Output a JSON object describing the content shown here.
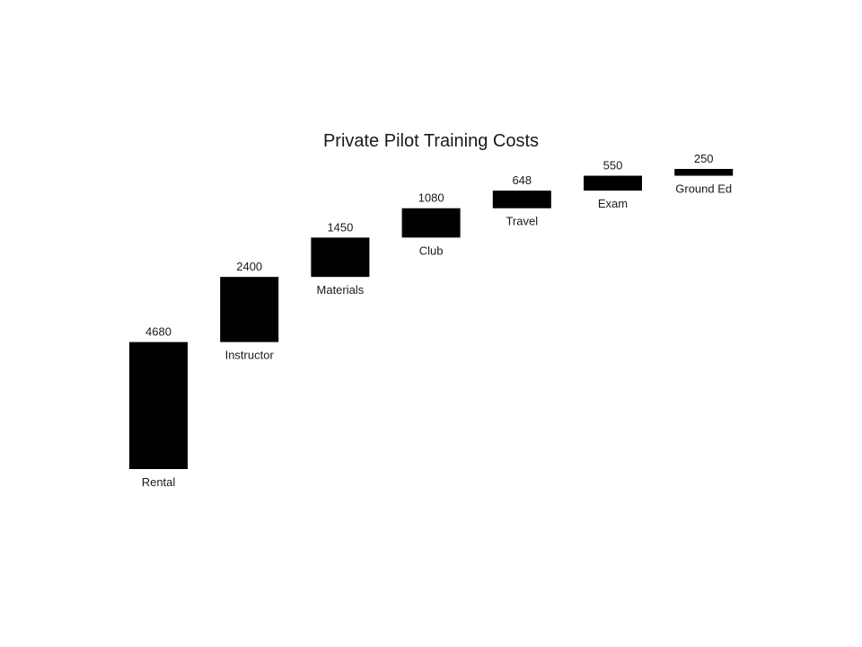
{
  "chart_data": {
    "type": "waterfall",
    "title": "Private Pilot Training Costs",
    "categories": [
      "Rental",
      "Instructor",
      "Materials",
      "Club",
      "Travel",
      "Exam",
      "Ground Ed"
    ],
    "values": [
      4680,
      2400,
      1450,
      1080,
      648,
      550,
      250
    ],
    "value_labels": [
      "4680",
      "2400",
      "1450",
      "1080",
      "648",
      "550",
      "250"
    ],
    "bar_color": "#000000",
    "grid": false,
    "legend": "none",
    "xlabel": "",
    "ylabel": ""
  }
}
